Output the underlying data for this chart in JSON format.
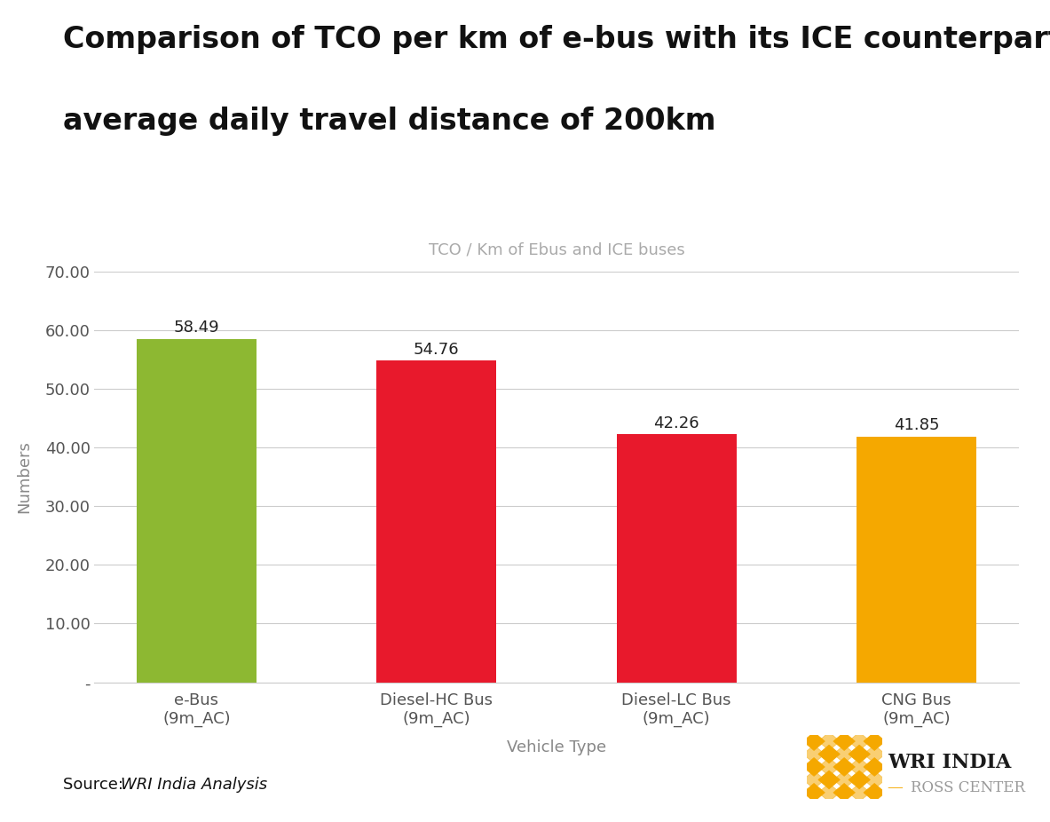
{
  "title_line1": "Comparison of TCO per km of e-bus with its ICE counterparts at an",
  "title_line2": "average daily travel distance of 200km",
  "subtitle": "TCO / Km of Ebus and ICE buses",
  "xlabel": "Vehicle Type",
  "ylabel": "Numbers",
  "categories": [
    "e-Bus\n(9m_AC)",
    "Diesel-HC Bus\n(9m_AC)",
    "Diesel-LC Bus\n(9m_AC)",
    "CNG Bus\n(9m_AC)"
  ],
  "values": [
    58.49,
    54.76,
    42.26,
    41.85
  ],
  "bar_colors": [
    "#8db832",
    "#e8192c",
    "#e8192c",
    "#f5a800"
  ],
  "ylim": [
    0,
    70
  ],
  "yticks": [
    0,
    10.0,
    20.0,
    30.0,
    40.0,
    50.0,
    60.0,
    70.0
  ],
  "ytick_labels": [
    "-",
    "10.00",
    "20.00",
    "30.00",
    "40.00",
    "50.00",
    "60.00",
    "70.00"
  ],
  "source_label": "Source: ",
  "source_italic": "WRI India Analysis",
  "wri_text": "WRI INDIA",
  "ross_text": "ROSS CENTER",
  "background_color": "#ffffff",
  "bar_label_fontsize": 13,
  "title_fontsize": 24,
  "subtitle_fontsize": 13,
  "axis_label_fontsize": 13,
  "tick_fontsize": 13,
  "source_fontsize": 13,
  "gold_color": "#f5a800",
  "wri_text_color": "#1a1a1a",
  "ross_text_color": "#999999"
}
